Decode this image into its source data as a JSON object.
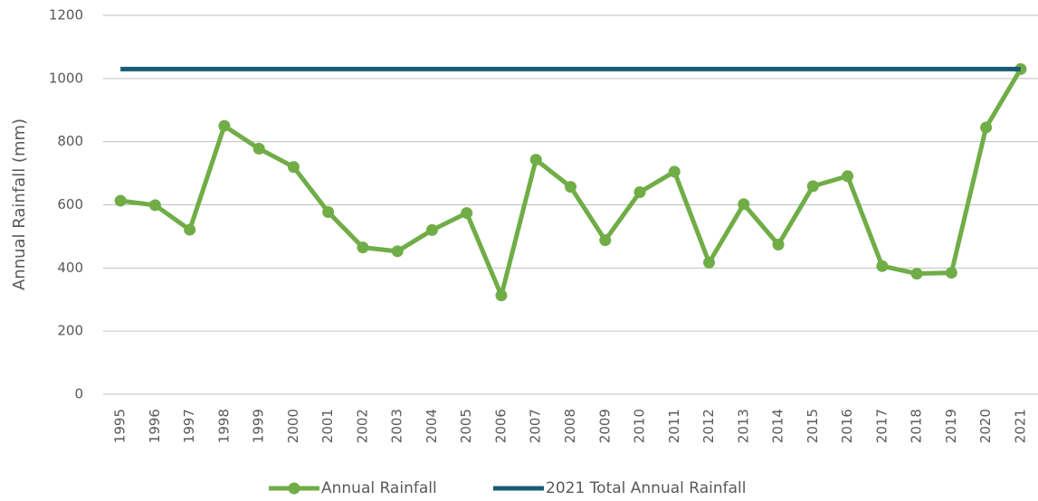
{
  "chart_data": {
    "type": "line",
    "y_label": "Annual Rainfall (mm)",
    "categories": [
      "1995",
      "1996",
      "1997",
      "1998",
      "1999",
      "2000",
      "2001",
      "2002",
      "2003",
      "2004",
      "2005",
      "2006",
      "2007",
      "2008",
      "2009",
      "2010",
      "2011",
      "2012",
      "2013",
      "2014",
      "2015",
      "2016",
      "2017",
      "2018",
      "2019",
      "2020",
      "2021"
    ],
    "series": [
      {
        "name": "Annual Rainfall",
        "color": "#70ad47",
        "markers": true,
        "values": [
          613,
          599,
          521,
          850,
          778,
          720,
          577,
          465,
          453,
          520,
          574,
          313,
          743,
          657,
          488,
          640,
          705,
          417,
          602,
          474,
          659,
          691,
          406,
          382,
          385,
          845,
          1030
        ]
      },
      {
        "name": "2021 Total Annual Rainfall",
        "color": "#175b74",
        "markers": false,
        "values": [
          1030,
          1030,
          1030,
          1030,
          1030,
          1030,
          1030,
          1030,
          1030,
          1030,
          1030,
          1030,
          1030,
          1030,
          1030,
          1030,
          1030,
          1030,
          1030,
          1030,
          1030,
          1030,
          1030,
          1030,
          1030,
          1030,
          1030
        ]
      }
    ],
    "ylim": [
      0,
      1200
    ],
    "yticks": [
      0,
      200,
      400,
      600,
      800,
      1000,
      1200
    ],
    "grid": true,
    "legend": "bottom"
  }
}
